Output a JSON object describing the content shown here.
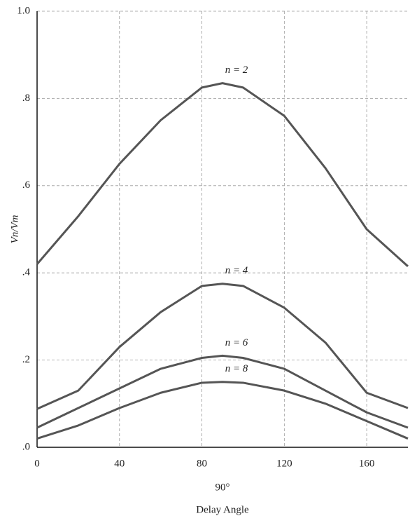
{
  "chart_data": {
    "type": "line",
    "x": [
      0,
      20,
      40,
      60,
      80,
      90,
      100,
      120,
      140,
      160,
      180
    ],
    "series": [
      {
        "name": "n = 2",
        "color": "#555555",
        "values": [
          0.42,
          0.53,
          0.65,
          0.75,
          0.825,
          0.835,
          0.825,
          0.76,
          0.64,
          0.5,
          0.415
        ]
      },
      {
        "name": "n = 4",
        "color": "#555555",
        "values": [
          0.088,
          0.13,
          0.23,
          0.31,
          0.37,
          0.375,
          0.37,
          0.32,
          0.24,
          0.125,
          0.09
        ]
      },
      {
        "name": "n = 6",
        "color": "#555555",
        "values": [
          0.045,
          0.09,
          0.135,
          0.18,
          0.205,
          0.21,
          0.205,
          0.18,
          0.13,
          0.08,
          0.045
        ]
      },
      {
        "name": "n = 8",
        "color": "#555555",
        "values": [
          0.02,
          0.05,
          0.09,
          0.125,
          0.148,
          0.15,
          0.148,
          0.13,
          0.1,
          0.06,
          0.02
        ]
      }
    ],
    "xlim": [
      0,
      180
    ],
    "xticks": [
      0,
      40,
      80,
      120,
      160
    ],
    "ylim": [
      0,
      1.0
    ],
    "yticks": [
      {
        "value": 0,
        "label": ".0"
      },
      {
        "value": 0.2,
        "label": ".2"
      },
      {
        "value": 0.4,
        "label": ".4"
      },
      {
        "value": 0.6,
        "label": ".6"
      },
      {
        "value": 0.8,
        "label": ".8"
      },
      {
        "value": 1.0,
        "label": "1.0"
      }
    ],
    "grid": true,
    "xlabel": "Delay Angle",
    "ylabel": "Vn/Vm",
    "annotation": {
      "text": "90°",
      "x": 90
    }
  }
}
